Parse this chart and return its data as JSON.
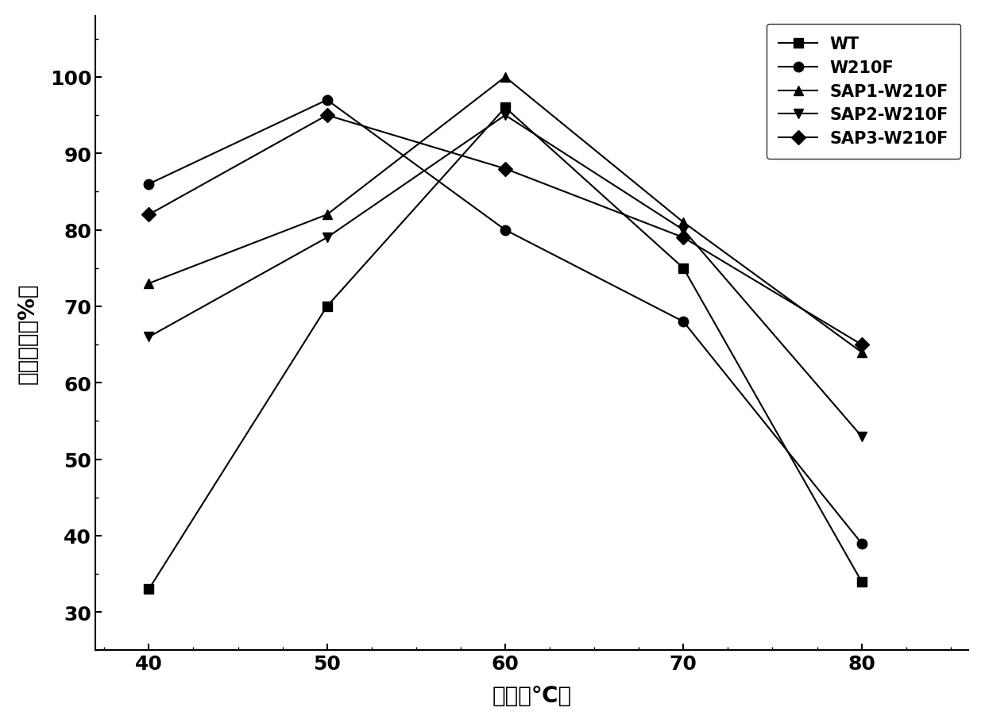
{
  "x": [
    40,
    50,
    60,
    70,
    80
  ],
  "series": [
    {
      "label": "WT",
      "values": [
        33,
        70,
        96,
        75,
        34
      ],
      "marker": "s",
      "color": "#000000",
      "linestyle": "-"
    },
    {
      "label": "W210F",
      "values": [
        86,
        97,
        80,
        68,
        39
      ],
      "marker": "o",
      "color": "#000000",
      "linestyle": "-"
    },
    {
      "label": "SAP1-W210F",
      "values": [
        73,
        82,
        100,
        81,
        64
      ],
      "marker": "^",
      "color": "#000000",
      "linestyle": "-"
    },
    {
      "label": "SAP2-W210F",
      "values": [
        66,
        79,
        95,
        80,
        53
      ],
      "marker": "v",
      "color": "#000000",
      "linestyle": "-"
    },
    {
      "label": "SAP3-W210F",
      "values": [
        82,
        95,
        88,
        79,
        65
      ],
      "marker": "D",
      "color": "#000000",
      "linestyle": "-"
    }
  ],
  "xlabel": "温度（℃）",
  "ylabel": "相对酶活（%）",
  "xlim": [
    37,
    86
  ],
  "ylim": [
    25,
    108
  ],
  "xticks": [
    40,
    50,
    60,
    70,
    80
  ],
  "yticks": [
    30,
    40,
    50,
    60,
    70,
    80,
    90,
    100
  ],
  "legend_loc": "upper right",
  "figsize": [
    12.4,
    9.12
  ],
  "dpi": 100,
  "bg_color": "#ffffff"
}
